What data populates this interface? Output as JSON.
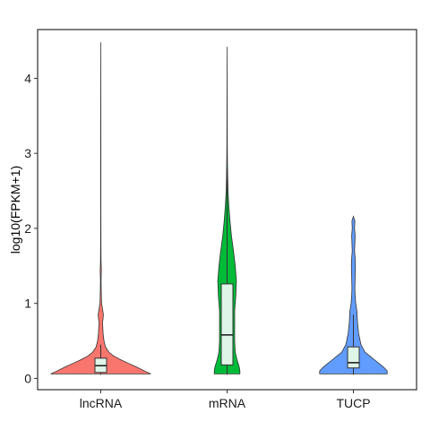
{
  "chart_data": {
    "type": "violin",
    "title": "",
    "xlabel": "",
    "ylabel": "log10(FPKM+1)",
    "ylim": [
      -0.15,
      4.65
    ],
    "yticks": [
      0,
      1,
      2,
      3,
      4
    ],
    "categories": [
      "lncRNA",
      "mRNA",
      "TUCP"
    ],
    "series": [
      {
        "category": "lncRNA",
        "color": "#F8766D",
        "box": {
          "q1": 0.08,
          "median": 0.17,
          "q3": 0.27,
          "whisker_low": 0.05,
          "whisker_high": 0.45
        },
        "max": 4.48,
        "density": [
          [
            0.06,
            0.86
          ],
          [
            0.1,
            0.75
          ],
          [
            0.15,
            0.62
          ],
          [
            0.2,
            0.48
          ],
          [
            0.25,
            0.34
          ],
          [
            0.3,
            0.22
          ],
          [
            0.35,
            0.14
          ],
          [
            0.42,
            0.08
          ],
          [
            0.5,
            0.055
          ],
          [
            0.6,
            0.04
          ],
          [
            0.75,
            0.03
          ],
          [
            0.8,
            0.04
          ],
          [
            0.85,
            0.045
          ],
          [
            0.9,
            0.035
          ],
          [
            1.0,
            0.015
          ],
          [
            1.1,
            0.01
          ],
          [
            1.3,
            0.005
          ],
          [
            1.45,
            0.01
          ],
          [
            1.55,
            0.005
          ],
          [
            1.8,
            0.003
          ],
          [
            2.2,
            0.002
          ],
          [
            3.0,
            0.002
          ],
          [
            4.48,
            0.0
          ]
        ]
      },
      {
        "category": "mRNA",
        "color": "#00BA38",
        "box": {
          "q1": 0.18,
          "median": 0.58,
          "q3": 1.26,
          "whisker_low": 0.05,
          "whisker_high": 2.8
        },
        "max": 4.42,
        "density": [
          [
            0.06,
            0.22
          ],
          [
            0.1,
            0.22
          ],
          [
            0.15,
            0.21
          ],
          [
            0.25,
            0.17
          ],
          [
            0.35,
            0.14
          ],
          [
            0.5,
            0.13
          ],
          [
            0.7,
            0.13
          ],
          [
            0.9,
            0.13
          ],
          [
            1.1,
            0.15
          ],
          [
            1.3,
            0.16
          ],
          [
            1.5,
            0.14
          ],
          [
            1.7,
            0.11
          ],
          [
            1.9,
            0.075
          ],
          [
            2.1,
            0.05
          ],
          [
            2.3,
            0.03
          ],
          [
            2.5,
            0.016
          ],
          [
            2.7,
            0.01
          ],
          [
            2.9,
            0.006
          ],
          [
            3.1,
            0.004
          ],
          [
            3.5,
            0.002
          ],
          [
            4.0,
            0.001
          ],
          [
            4.42,
            0.0
          ]
        ]
      },
      {
        "category": "TUCP",
        "color": "#619CFF",
        "box": {
          "q1": 0.14,
          "median": 0.21,
          "q3": 0.42,
          "whisker_low": 0.05,
          "whisker_high": 0.85
        },
        "max": 2.16,
        "density": [
          [
            0.06,
            0.58
          ],
          [
            0.1,
            0.58
          ],
          [
            0.15,
            0.52
          ],
          [
            0.2,
            0.44
          ],
          [
            0.25,
            0.36
          ],
          [
            0.3,
            0.28
          ],
          [
            0.35,
            0.2
          ],
          [
            0.45,
            0.13
          ],
          [
            0.6,
            0.09
          ],
          [
            0.75,
            0.07
          ],
          [
            0.9,
            0.06
          ],
          [
            1.0,
            0.04
          ],
          [
            1.1,
            0.03
          ],
          [
            1.2,
            0.025
          ],
          [
            1.35,
            0.03
          ],
          [
            1.5,
            0.035
          ],
          [
            1.6,
            0.03
          ],
          [
            1.7,
            0.02
          ],
          [
            1.8,
            0.025
          ],
          [
            1.9,
            0.03
          ],
          [
            2.0,
            0.02
          ],
          [
            2.1,
            0.025
          ],
          [
            2.16,
            0.0
          ]
        ]
      }
    ],
    "grid": false,
    "legend": "none"
  }
}
